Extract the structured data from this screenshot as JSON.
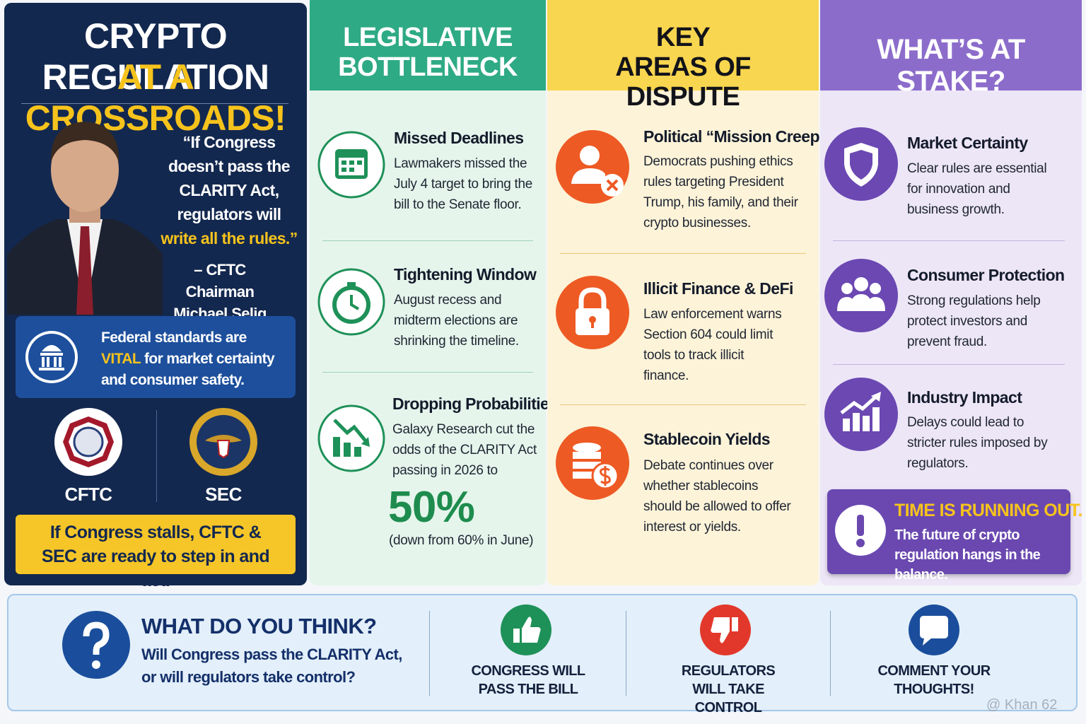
{
  "left_panel": {
    "title_line1": "CRYPTO REGULATION",
    "title_line2": "AT A CROSSROADS!",
    "quote": "“If Congress doesn’t pass the CLARITY Act, regulators will",
    "quote_highlight": "write all the rules.”",
    "attribution": "– CFTC Chairman Michael Selig",
    "callout": {
      "before": "Federal standards are",
      "emphasis": "VITAL",
      "after": "for market certainty and consumer safety."
    },
    "agencies": [
      "CFTC",
      "SEC"
    ],
    "warning": "If Congress stalls, CFTC & SEC are ready to step in and act."
  },
  "columns": [
    {
      "title": "LEGISLATIVE BOTTLENECK",
      "items": [
        {
          "heading": "Missed Deadlines",
          "text": "Lawmakers missed the July 4 target to bring the bill to the Senate floor."
        },
        {
          "heading": "Tightening Window",
          "text": "August recess and midterm elections are shrinking the timeline."
        },
        {
          "heading": "Dropping Probabilities",
          "text": "Galaxy Research cut the odds of the CLARITY Act passing in 2026 to"
        }
      ],
      "stat": {
        "value": "50%",
        "note": "(down from 60% in June)"
      }
    },
    {
      "title": "KEY AREAS OF DISPUTE",
      "items": [
        {
          "heading": "Political “Mission Creep”",
          "text": "Democrats pushing ethics rules targeting President Trump, his family, and their crypto businesses."
        },
        {
          "heading": "Illicit Finance & DeFi",
          "text": "Law enforcement warns Section 604 could limit tools to track illicit finance."
        },
        {
          "heading": "Stablecoin Yields",
          "text": "Debate continues over whether stablecoins should be allowed to offer interest or yields."
        }
      ]
    },
    {
      "title": "WHAT’S AT STAKE?",
      "items": [
        {
          "heading": "Market Certainty",
          "text": "Clear rules are essential for innovation and business growth."
        },
        {
          "heading": "Consumer Protection",
          "text": "Strong regulations help protect investors and prevent fraud."
        },
        {
          "heading": "Industry Impact",
          "text": "Delays could lead to stricter rules imposed by regulators."
        }
      ],
      "alert": {
        "title": "TIME IS RUNNING OUT.",
        "text": "The future of crypto regulation hangs in the balance."
      }
    }
  ],
  "poll": {
    "title": "WHAT DO YOU THINK?",
    "question": "Will Congress pass the CLARITY Act, or will regulators take control?",
    "options": [
      "CONGRESS WILL PASS THE BILL",
      "REGULATORS WILL TAKE CONTROL",
      "COMMENT YOUR THOUGHTS!"
    ]
  },
  "watermark": "@ Khan 62"
}
